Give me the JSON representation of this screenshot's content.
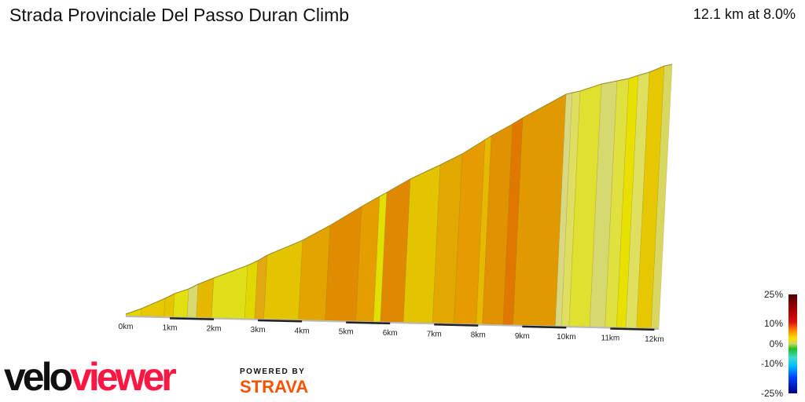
{
  "header": {
    "title": "Strada Provinciale Del Passo Duran Climb",
    "summary": "12.1 km at 8.0%"
  },
  "chart_data": {
    "type": "area",
    "title": "Strada Provinciale Del Passo Duran Climb",
    "distance_km": 12.1,
    "avg_gradient_pct": 8.0,
    "x_ticks": [
      "0km",
      "1km",
      "2km",
      "3km",
      "4km",
      "5km",
      "6km",
      "7km",
      "8km",
      "9km",
      "10km",
      "11km",
      "12km"
    ],
    "segment_colors": [
      "#e6d400",
      "#e8c800",
      "#e5c400",
      "#e2e010",
      "#d6d870",
      "#e5b800",
      "#e0e01a",
      "#e0d800",
      "#e2a810",
      "#e3c400",
      "#e3a400",
      "#e08c00",
      "#e49e00",
      "#e2e000",
      "#e08800",
      "#e2c400",
      "#e3a800",
      "#e49c00",
      "#e6b800",
      "#e09200",
      "#e07800",
      "#e09a00",
      "#d8d880",
      "#dede60",
      "#e0e030",
      "#d6d870",
      "#e0e040",
      "#e8e000",
      "#e0e060",
      "#e6c800",
      "#d8d860"
    ],
    "legend": {
      "labels": [
        "25%",
        "10%",
        "0%",
        "-10%",
        "-25%"
      ]
    }
  },
  "branding": {
    "logo_left": "velo",
    "logo_right": "viewer",
    "powered_by": "POWERED BY",
    "strava": "STRAVA"
  }
}
